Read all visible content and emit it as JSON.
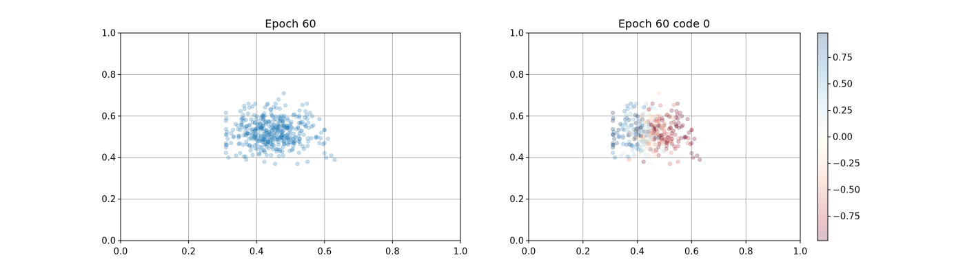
{
  "figure": {
    "background": "#ffffff",
    "grid_color": "#b0b0b0"
  },
  "chart_data": [
    {
      "type": "scatter",
      "title": "Epoch 60",
      "xlabel": "",
      "ylabel": "",
      "xlim": [
        0.0,
        1.0
      ],
      "ylim": [
        0.0,
        1.0
      ],
      "xticks": [
        "0.0",
        "0.2",
        "0.4",
        "0.6",
        "0.8",
        "1.0"
      ],
      "yticks": [
        "0.0",
        "0.2",
        "0.4",
        "0.6",
        "0.8",
        "1.0"
      ],
      "grid": true,
      "point_color": "#1f77b4",
      "point_alpha": 0.25,
      "n_points": 400,
      "distribution": {
        "x_center": 0.445,
        "x_spread": 0.065,
        "y_center": 0.52,
        "y_spread": 0.055
      },
      "notable_points": [
        {
          "x": 0.605,
          "y": 0.4
        },
        {
          "x": 0.62,
          "y": 0.41
        },
        {
          "x": 0.63,
          "y": 0.39
        },
        {
          "x": 0.61,
          "y": 0.49
        },
        {
          "x": 0.59,
          "y": 0.52
        },
        {
          "x": 0.575,
          "y": 0.5
        },
        {
          "x": 0.585,
          "y": 0.47
        },
        {
          "x": 0.48,
          "y": 0.71
        },
        {
          "x": 0.465,
          "y": 0.68
        },
        {
          "x": 0.325,
          "y": 0.47
        },
        {
          "x": 0.315,
          "y": 0.49
        },
        {
          "x": 0.34,
          "y": 0.41
        },
        {
          "x": 0.37,
          "y": 0.39
        },
        {
          "x": 0.455,
          "y": 0.37
        },
        {
          "x": 0.52,
          "y": 0.37
        },
        {
          "x": 0.55,
          "y": 0.38
        },
        {
          "x": 0.53,
          "y": 0.57
        },
        {
          "x": 0.545,
          "y": 0.55
        }
      ]
    },
    {
      "type": "scatter",
      "title": "Epoch 60 code 0",
      "xlabel": "",
      "ylabel": "",
      "xlim": [
        0.0,
        1.0
      ],
      "ylim": [
        0.0,
        1.0
      ],
      "xticks": [
        "0.0",
        "0.2",
        "0.4",
        "0.6",
        "0.8",
        "1.0"
      ],
      "yticks": [
        "0.0",
        "0.2",
        "0.4",
        "0.6",
        "0.8",
        "1.0"
      ],
      "grid": true,
      "point_alpha": 0.25,
      "colormap": "RdBu",
      "color_range": [
        -0.98,
        0.98
      ],
      "colorbar_ticks": [
        "0.75",
        "0.50",
        "0.25",
        "0.00",
        "−0.25",
        "−0.50",
        "−0.75"
      ],
      "colorbar_tick_values": [
        0.75,
        0.5,
        0.25,
        0.0,
        -0.25,
        -0.5,
        -0.75
      ],
      "n_points": 400,
      "distribution": {
        "x_center": 0.445,
        "x_spread": 0.065,
        "y_center": 0.52,
        "y_spread": 0.055
      }
    }
  ]
}
